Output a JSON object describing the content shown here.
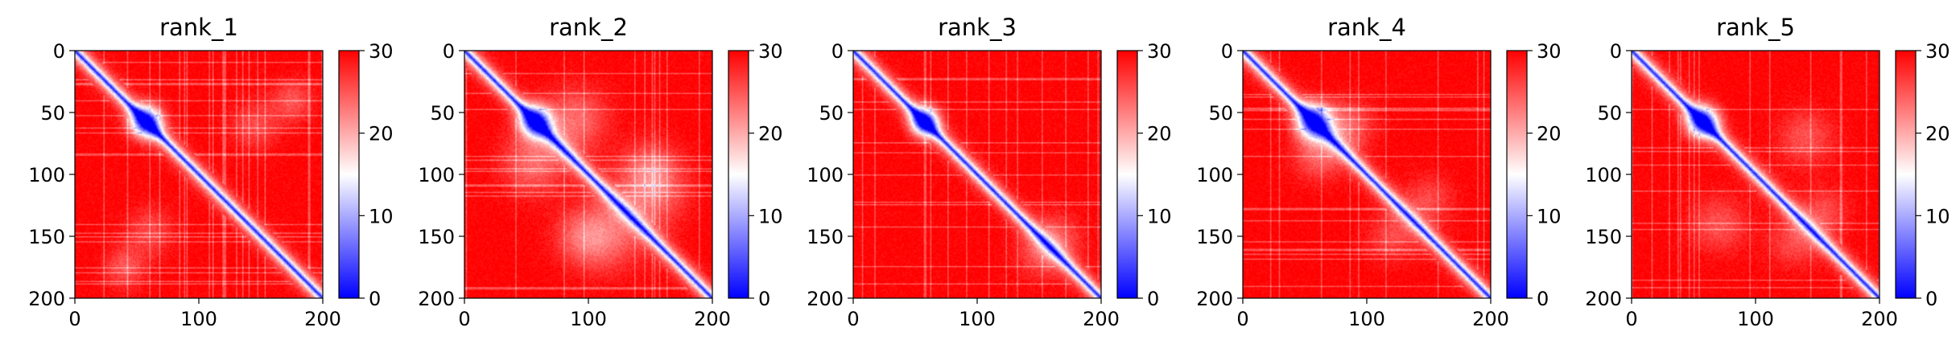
{
  "chart_data": [
    {
      "type": "heatmap",
      "title": "rank_1",
      "xlim": [
        0,
        200
      ],
      "ylim": [
        200,
        0
      ],
      "x_ticks": [
        "0",
        "100",
        "200"
      ],
      "y_ticks": [
        "0",
        "50",
        "100",
        "150",
        "200"
      ],
      "colorbar": {
        "range": [
          0,
          30
        ],
        "ticks": [
          "0",
          "10",
          "20",
          "30"
        ],
        "colormap": "bwr"
      },
      "features": {
        "near_diagonal_value": 1,
        "off_diagonal_value": 30,
        "blob_center": [
          57,
          57
        ],
        "blob_radius": 9,
        "light_patches": [
          [
            40,
            175,
            12,
            0.35
          ],
          [
            145,
            60,
            14,
            0.3
          ]
        ]
      }
    },
    {
      "type": "heatmap",
      "title": "rank_2",
      "xlim": [
        0,
        200
      ],
      "ylim": [
        200,
        0
      ],
      "x_ticks": [
        "0",
        "100",
        "200"
      ],
      "y_ticks": [
        "0",
        "50",
        "100",
        "150",
        "200"
      ],
      "colorbar": {
        "range": [
          0,
          30
        ],
        "ticks": [
          "0",
          "10",
          "20",
          "30"
        ],
        "colormap": "bwr"
      },
      "features": {
        "near_diagonal_value": 1,
        "off_diagonal_value": 30,
        "blob_center": [
          57,
          57
        ],
        "blob_radius": 9,
        "light_patches": [
          [
            55,
            90,
            18,
            0.45
          ],
          [
            150,
            115,
            20,
            0.4
          ],
          [
            95,
            150,
            16,
            0.35
          ]
        ]
      }
    },
    {
      "type": "heatmap",
      "title": "rank_3",
      "xlim": [
        0,
        200
      ],
      "ylim": [
        200,
        0
      ],
      "x_ticks": [
        "0",
        "100",
        "200"
      ],
      "y_ticks": [
        "0",
        "50",
        "100",
        "150",
        "200"
      ],
      "colorbar": {
        "range": [
          0,
          30
        ],
        "ticks": [
          "0",
          "10",
          "20",
          "30"
        ],
        "colormap": "bwr"
      },
      "features": {
        "near_diagonal_value": 1,
        "off_diagonal_value": 30,
        "blob_center": [
          57,
          57
        ],
        "blob_radius": 8,
        "light_patches": [
          [
            150,
            165,
            14,
            0.3
          ]
        ]
      }
    },
    {
      "type": "heatmap",
      "title": "rank_4",
      "xlim": [
        0,
        200
      ],
      "ylim": [
        200,
        0
      ],
      "x_ticks": [
        "0",
        "100",
        "200"
      ],
      "y_ticks": [
        "0",
        "50",
        "100",
        "150",
        "200"
      ],
      "colorbar": {
        "range": [
          0,
          30
        ],
        "ticks": [
          "0",
          "10",
          "20",
          "30"
        ],
        "colormap": "bwr"
      },
      "features": {
        "near_diagonal_value": 1,
        "off_diagonal_value": 30,
        "blob_center": [
          57,
          57
        ],
        "blob_radius": 10,
        "light_patches": [
          [
            60,
            85,
            14,
            0.4
          ],
          [
            150,
            120,
            14,
            0.3
          ]
        ]
      }
    },
    {
      "type": "heatmap",
      "title": "rank_5",
      "xlim": [
        0,
        200
      ],
      "ylim": [
        200,
        0
      ],
      "x_ticks": [
        "0",
        "100",
        "200"
      ],
      "y_ticks": [
        "0",
        "50",
        "100",
        "150",
        "200"
      ],
      "colorbar": {
        "range": [
          0,
          30
        ],
        "ticks": [
          "0",
          "10",
          "20",
          "30"
        ],
        "colormap": "bwr"
      },
      "features": {
        "near_diagonal_value": 1,
        "off_diagonal_value": 30,
        "blob_center": [
          57,
          57
        ],
        "blob_radius": 9,
        "light_patches": [
          [
            70,
            140,
            16,
            0.35
          ],
          [
            155,
            130,
            14,
            0.3
          ]
        ]
      }
    }
  ]
}
